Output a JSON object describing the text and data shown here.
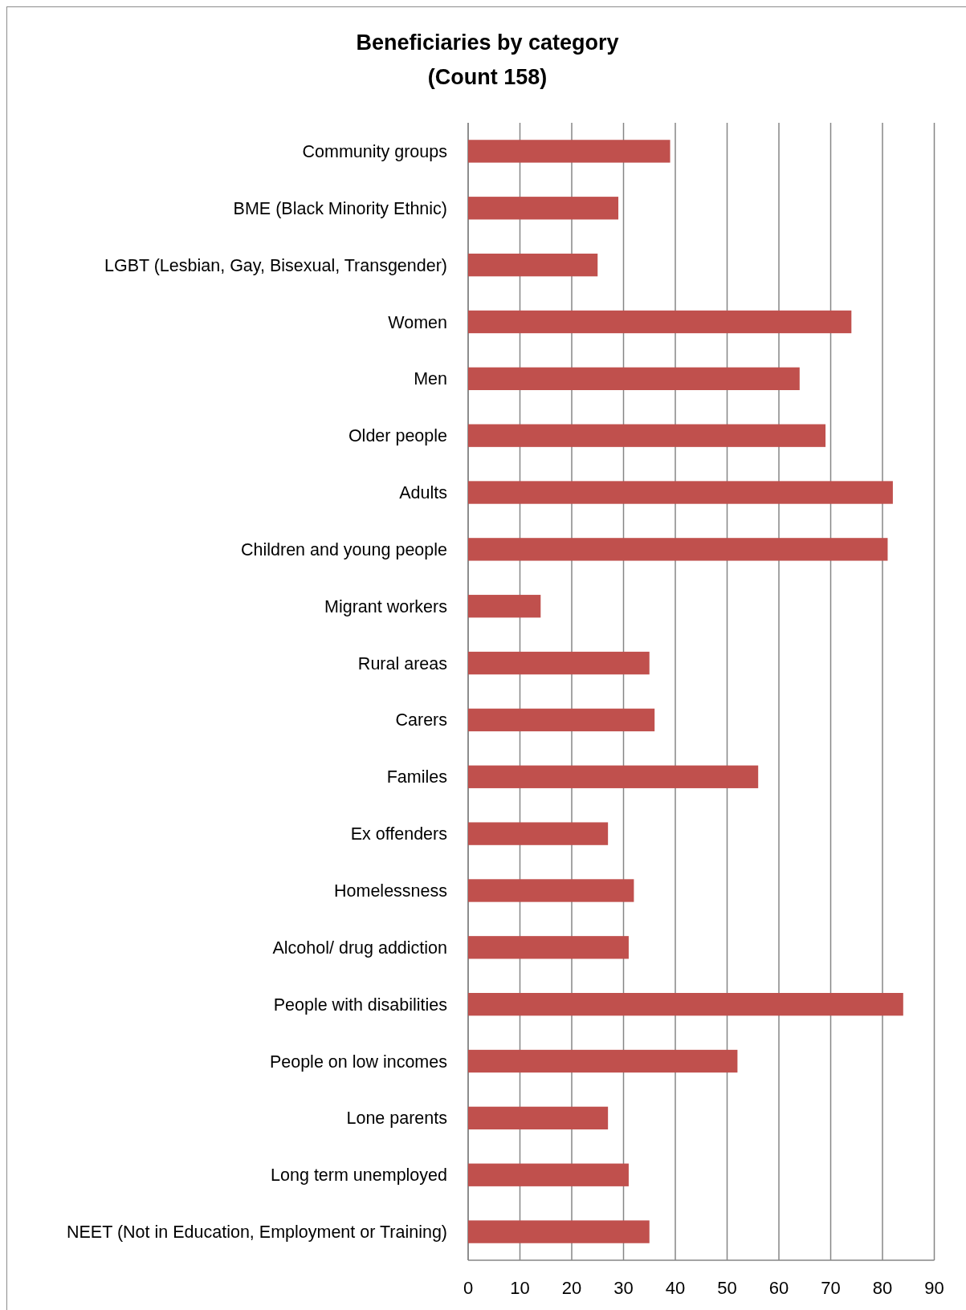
{
  "chart_data": {
    "type": "bar",
    "orientation": "horizontal",
    "title": "Beneficiaries by category\n(Count 158)",
    "categories": [
      "Community groups",
      "BME (Black Minority Ethnic)",
      "LGBT (Lesbian, Gay, Bisexual, Transgender)",
      "Women",
      "Men",
      "Older people",
      "Adults",
      "Children and young people",
      "Migrant workers",
      "Rural areas",
      "Carers",
      "Familes",
      "Ex offenders",
      "Homelessness",
      "Alcohol/ drug addiction",
      "People with disabilities",
      "People on low incomes",
      "Lone parents",
      "Long term unemployed",
      "NEET (Not in Education, Employment or Training)"
    ],
    "values": [
      39,
      29,
      25,
      74,
      64,
      69,
      82,
      81,
      14,
      35,
      36,
      56,
      27,
      32,
      31,
      84,
      52,
      27,
      31,
      35
    ],
    "color": "#c0504d",
    "xlim": [
      0,
      90
    ],
    "xticks": [
      0,
      10,
      20,
      30,
      40,
      50,
      60,
      70,
      80,
      90
    ],
    "grid": "x"
  }
}
